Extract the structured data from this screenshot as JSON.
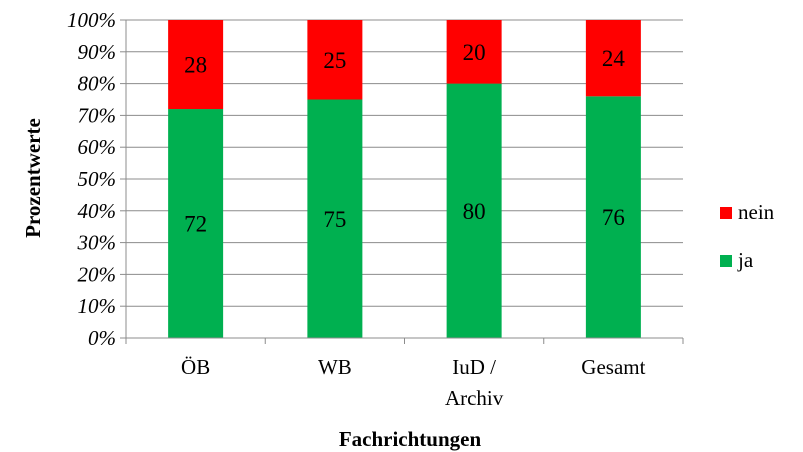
{
  "chart_data": {
    "type": "bar",
    "stacked": true,
    "percent": true,
    "title": "",
    "xlabel": "Fachrichtungen",
    "ylabel": "Prozentwerte",
    "categories": [
      "ÖB",
      [
        "WB"
      ],
      [
        "IuD /",
        "Archiv"
      ],
      [
        "Gesamt"
      ]
    ],
    "series": [
      {
        "name": "ja",
        "color": "#00b050",
        "values": [
          72,
          75,
          80,
          76
        ]
      },
      {
        "name": "nein",
        "color": "#ff0000",
        "values": [
          28,
          25,
          20,
          24
        ]
      }
    ],
    "ylim": [
      0,
      100
    ],
    "yticks": [
      "0%",
      "10%",
      "20%",
      "30%",
      "40%",
      "50%",
      "60%",
      "70%",
      "80%",
      "90%",
      "100%"
    ],
    "grid": true,
    "legend": {
      "position": "right",
      "order": [
        "nein",
        "ja"
      ]
    }
  }
}
